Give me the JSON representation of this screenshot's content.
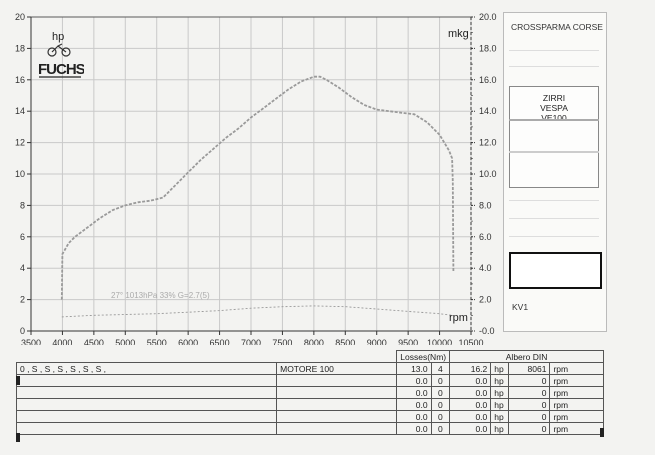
{
  "chart_data": {
    "type": "line",
    "title": "",
    "x_ticks": [
      3500,
      4000,
      4500,
      5000,
      5500,
      6000,
      6500,
      7000,
      7500,
      8000,
      8500,
      9000,
      9500,
      10000,
      10500
    ],
    "y_left_ticks": [
      0,
      2,
      4,
      6,
      8,
      10,
      12,
      14,
      16,
      18,
      20
    ],
    "y_right_ticks": [
      "-0.0",
      "2.0",
      "4.0",
      "6.0",
      "8.0",
      "10.0",
      "12.0",
      "14.0",
      "16.0",
      "18.0",
      "20.0"
    ],
    "xlim": [
      3500,
      10500
    ],
    "ylim": [
      0,
      20
    ],
    "left_unit": "hp",
    "right_unit": "mkg",
    "x_unit": "rpm",
    "grid": true,
    "annotation": "27° 1013hPa 33% G=2.7(5)",
    "series": [
      {
        "values": [
          [
            3990,
            2.0
          ],
          [
            4000,
            4.9
          ],
          [
            4100,
            5.6
          ],
          [
            4200,
            6.0
          ],
          [
            4400,
            6.6
          ],
          [
            4600,
            7.2
          ],
          [
            4800,
            7.7
          ],
          [
            5000,
            8.0
          ],
          [
            5200,
            8.2
          ],
          [
            5400,
            8.3
          ],
          [
            5600,
            8.5
          ],
          [
            5800,
            9.3
          ],
          [
            6000,
            10.1
          ],
          [
            6200,
            10.9
          ],
          [
            6400,
            11.6
          ],
          [
            6600,
            12.3
          ],
          [
            6800,
            12.9
          ],
          [
            7000,
            13.6
          ],
          [
            7200,
            14.2
          ],
          [
            7400,
            14.8
          ],
          [
            7600,
            15.4
          ],
          [
            7800,
            15.9
          ],
          [
            8000,
            16.2
          ],
          [
            8100,
            16.2
          ],
          [
            8200,
            16.0
          ],
          [
            8400,
            15.5
          ],
          [
            8600,
            14.9
          ],
          [
            8800,
            14.4
          ],
          [
            9000,
            14.1
          ],
          [
            9200,
            14.0
          ],
          [
            9400,
            13.9
          ],
          [
            9600,
            13.8
          ],
          [
            9800,
            13.3
          ],
          [
            10000,
            12.5
          ],
          [
            10150,
            11.5
          ],
          [
            10200,
            11.0
          ],
          [
            10210,
            9.5
          ],
          [
            10220,
            3.8
          ]
        ]
      },
      {
        "values": [
          [
            3990,
            0.9
          ],
          [
            4500,
            1.0
          ],
          [
            5000,
            1.05
          ],
          [
            5500,
            1.1
          ],
          [
            6000,
            1.2
          ],
          [
            6500,
            1.3
          ],
          [
            7000,
            1.45
          ],
          [
            7500,
            1.55
          ],
          [
            8000,
            1.6
          ],
          [
            8500,
            1.55
          ],
          [
            9000,
            1.4
          ],
          [
            9500,
            1.25
          ],
          [
            10000,
            1.1
          ],
          [
            10200,
            1.0
          ]
        ]
      }
    ]
  },
  "side_panel": {
    "team": "CROSSPARMA CORSE",
    "legend_lines": [
      "ZIRRI",
      "VESPA",
      "VE100"
    ],
    "kv_label": "KV1"
  },
  "logo": {
    "text": "FUCHS"
  },
  "colors": {
    "curve": "#9a9a9a",
    "grid": "#c9c9c9",
    "axis": "#333333"
  },
  "table": {
    "losses_header": "Losses(Nm)",
    "din_header": "Albero DIN",
    "rows": [
      {
        "desc": "0 , S , S , S , S , S , S ,",
        "motor": "MOTORE 100",
        "loss": "13.0",
        "n": "4",
        "hp": "16.2",
        "hp_unit": "hp",
        "rpm": "8061",
        "rpm_unit": "rpm"
      },
      {
        "desc": "",
        "motor": "",
        "loss": "0.0",
        "n": "0",
        "hp": "0.0",
        "hp_unit": "hp",
        "rpm": "0",
        "rpm_unit": "rpm"
      },
      {
        "desc": "",
        "motor": "",
        "loss": "0.0",
        "n": "0",
        "hp": "0.0",
        "hp_unit": "hp",
        "rpm": "0",
        "rpm_unit": "rpm"
      },
      {
        "desc": "",
        "motor": "",
        "loss": "0.0",
        "n": "0",
        "hp": "0.0",
        "hp_unit": "hp",
        "rpm": "0",
        "rpm_unit": "rpm"
      },
      {
        "desc": "",
        "motor": "",
        "loss": "0.0",
        "n": "0",
        "hp": "0.0",
        "hp_unit": "hp",
        "rpm": "0",
        "rpm_unit": "rpm"
      },
      {
        "desc": "",
        "motor": "",
        "loss": "0.0",
        "n": "0",
        "hp": "0.0",
        "hp_unit": "hp",
        "rpm": "0",
        "rpm_unit": "rpm"
      }
    ]
  }
}
